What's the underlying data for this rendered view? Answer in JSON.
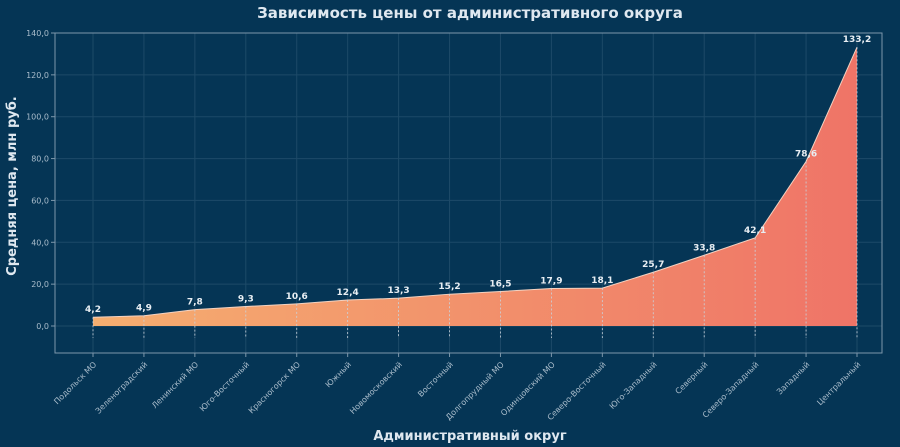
{
  "chart_data": {
    "type": "area",
    "title": "Зависимость цены от административного округа",
    "xlabel": "Административный округ",
    "ylabel": "Средняя цена, млн руб.",
    "ylim": [
      -13,
      140
    ],
    "yticks": [
      "0,0",
      "20,0",
      "40,0",
      "60,0",
      "80,0",
      "100,0",
      "120,0",
      "140,0"
    ],
    "ytick_values": [
      0,
      20,
      40,
      60,
      80,
      100,
      120,
      140
    ],
    "grid": true,
    "categories": [
      "Подольск МО",
      "Зеленоградский",
      "Ленинский МО",
      "Юго-Восточный",
      "Красногорск МО",
      "Южный",
      "Новомосковский",
      "Восточный",
      "Долгопрудный МО",
      "Одинцовский МО",
      "Северо-Восточный",
      "Юго-Западный",
      "Северный",
      "Северо-Западный",
      "Западный",
      "Центральный"
    ],
    "values": [
      4.2,
      4.9,
      7.8,
      9.3,
      10.6,
      12.4,
      13.3,
      15.2,
      16.5,
      17.9,
      18.1,
      25.7,
      33.8,
      42.1,
      78.6,
      133.2
    ],
    "labels": [
      "4,2",
      "4,9",
      "7,8",
      "9,3",
      "10,6",
      "12,4",
      "13,3",
      "15,2",
      "16,5",
      "17,9",
      "18,1",
      "25,7",
      "33,8",
      "42,1",
      "78,6",
      "133,2"
    ],
    "colors": {
      "start": "#f5ae70",
      "end": "#ef7467",
      "background": "#053555"
    }
  }
}
